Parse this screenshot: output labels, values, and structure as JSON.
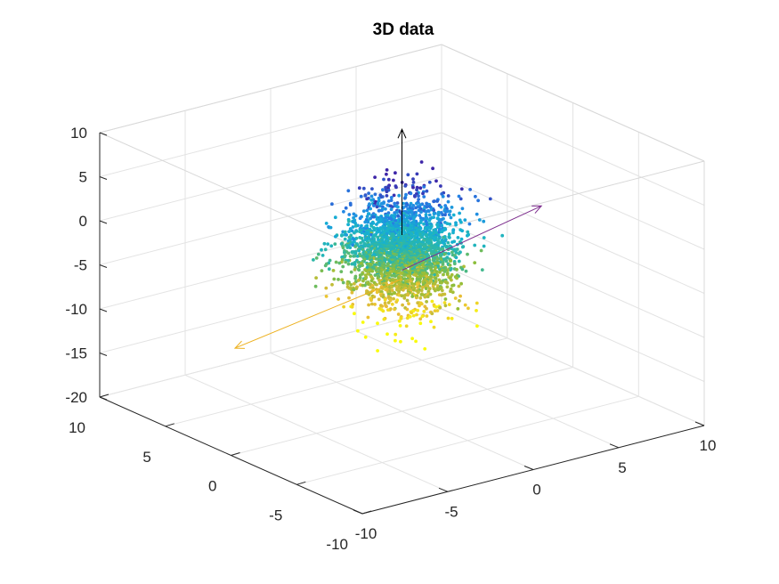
{
  "chart_data": {
    "type": "scatter3d",
    "title": "3D data",
    "xlabel": "",
    "ylabel": "",
    "zlabel": "",
    "xlim": [
      -10,
      10
    ],
    "ylim": [
      -10,
      10
    ],
    "zlim": [
      -20,
      10
    ],
    "x_ticks": [
      -10,
      -5,
      0,
      5,
      10
    ],
    "y_ticks": [
      -10,
      -5,
      0,
      5,
      10
    ],
    "z_ticks": [
      -20,
      -15,
      -10,
      -5,
      0,
      5,
      10
    ],
    "x_tick_labels": [
      "-10",
      "-5",
      "0",
      "5",
      "10"
    ],
    "y_tick_labels": [
      "-10",
      "-5",
      "0",
      "5",
      "10"
    ],
    "z_tick_labels": [
      "-20",
      "-15",
      "-10",
      "-5",
      "0",
      "5",
      "10"
    ],
    "grid": true,
    "colormap": "parula",
    "point_color_by": "z (high = blue, low = yellow)",
    "scatter_cloud": {
      "center": [
        0,
        0,
        -2
      ],
      "spread": [
        1.3,
        1.3,
        3.0
      ],
      "approx_point_count": 2500,
      "note": "dense ellipsoidal point cloud elongated along z"
    },
    "vectors": [
      {
        "color": "#000000",
        "from": [
          0,
          0,
          0
        ],
        "to": [
          0,
          0,
          12
        ]
      },
      {
        "color": "#7e2f8e",
        "from": [
          0,
          0,
          -4
        ],
        "to": [
          12,
          5,
          -6
        ]
      },
      {
        "color": "#edb120",
        "from": [
          0,
          0,
          -5
        ],
        "to": [
          -9,
          1,
          -9
        ]
      }
    ],
    "colors": {
      "cloud_high": "#3a55e6",
      "cloud_mid": "#2ab8c8",
      "cloud_low": "#f0c82a"
    }
  }
}
